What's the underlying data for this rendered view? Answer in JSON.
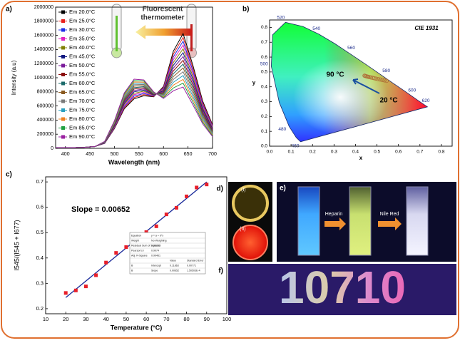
{
  "chart_data": [
    {
      "type": "line",
      "label": "a)",
      "xlabel": "Wavelength (nm)",
      "ylabel": "Intensity (a.u)",
      "annotation": [
        "Fluorescent",
        "thermometer"
      ],
      "x": [
        380,
        400,
        420,
        440,
        460,
        480,
        500,
        520,
        540,
        560,
        580,
        600,
        620,
        640,
        660,
        680,
        700
      ],
      "xlim": [
        380,
        700
      ],
      "xticks": [
        400,
        450,
        500,
        550,
        600,
        650,
        700
      ],
      "ylim": [
        0,
        2000000
      ],
      "yticks": [
        0,
        200000,
        400000,
        600000,
        800000,
        1000000,
        1200000,
        1400000,
        1600000,
        1800000,
        2000000
      ],
      "series": [
        {
          "name": "Em 20.0°C",
          "color": "#000000",
          "values": [
            10000,
            10000,
            10000,
            15000,
            25000,
            70000,
            280000,
            560000,
            700000,
            745000,
            730000,
            875000,
            1375000,
            1625000,
            1176000,
            668000,
            334000
          ]
        },
        {
          "name": "Em 25.0°C",
          "color": "#e8201c",
          "values": [
            10000,
            10000,
            10000,
            15000,
            25000,
            72000,
            288000,
            576000,
            720000,
            761000,
            735000,
            863000,
            1335000,
            1571000,
            1136000,
            645000,
            322000
          ]
        },
        {
          "name": "Em 30.0°C",
          "color": "#1c2ee8",
          "values": [
            10000,
            10000,
            10000,
            15000,
            25000,
            74000,
            296000,
            592000,
            740000,
            777000,
            740000,
            851000,
            1295000,
            1517000,
            1096000,
            622000,
            310000
          ]
        },
        {
          "name": "Em 35.0°C",
          "color": "#e020c0",
          "values": [
            10000,
            10000,
            10000,
            15000,
            25000,
            76000,
            304000,
            608000,
            760000,
            793000,
            745000,
            839000,
            1255000,
            1463000,
            1056000,
            599000,
            298000
          ]
        },
        {
          "name": "Em 40.0°C",
          "color": "#808000",
          "values": [
            10000,
            10000,
            10000,
            15000,
            25000,
            78000,
            312000,
            624000,
            780000,
            809000,
            750000,
            827000,
            1215000,
            1409000,
            1016000,
            576000,
            286000
          ]
        },
        {
          "name": "Em 45.0°C",
          "color": "#101880",
          "values": [
            10000,
            10000,
            10000,
            15000,
            25000,
            80000,
            320000,
            640000,
            800000,
            825000,
            755000,
            815000,
            1175000,
            1355000,
            976000,
            553000,
            274000
          ]
        },
        {
          "name": "Em 50.0°C",
          "color": "#7a1a9a",
          "values": [
            10000,
            10000,
            10000,
            15000,
            25000,
            82000,
            328000,
            656000,
            820000,
            841000,
            760000,
            803000,
            1135000,
            1301000,
            936000,
            530000,
            262000
          ]
        },
        {
          "name": "Em 55.0°C",
          "color": "#8a1010",
          "values": [
            10000,
            10000,
            10000,
            15000,
            25000,
            84000,
            336000,
            672000,
            840000,
            857000,
            765000,
            791000,
            1095000,
            1247000,
            896000,
            507000,
            250000
          ]
        },
        {
          "name": "Em 60.0°C",
          "color": "#1a6a6a",
          "values": [
            10000,
            10000,
            10000,
            15000,
            25000,
            86000,
            344000,
            688000,
            860000,
            873000,
            770000,
            779000,
            1055000,
            1193000,
            856000,
            484000,
            238000
          ]
        },
        {
          "name": "Em 65.0°C",
          "color": "#8a5a20",
          "values": [
            10000,
            10000,
            10000,
            15000,
            25000,
            88000,
            352000,
            704000,
            880000,
            889000,
            775000,
            767000,
            1015000,
            1139000,
            816000,
            461000,
            226000
          ]
        },
        {
          "name": "Em 70.0°C",
          "color": "#7a7a7a",
          "values": [
            10000,
            10000,
            10000,
            15000,
            25000,
            90000,
            360000,
            720000,
            900000,
            905000,
            780000,
            755000,
            975000,
            1085000,
            776000,
            438000,
            214000
          ]
        },
        {
          "name": "Em 75.0°C",
          "color": "#2aa0c0",
          "values": [
            10000,
            10000,
            10000,
            15000,
            25000,
            92000,
            368000,
            736000,
            920000,
            921000,
            785000,
            743000,
            935000,
            1031000,
            736000,
            415000,
            202000
          ]
        },
        {
          "name": "Em 80.0°C",
          "color": "#f08020",
          "values": [
            10000,
            10000,
            10000,
            15000,
            25000,
            94000,
            376000,
            752000,
            940000,
            937000,
            790000,
            731000,
            895000,
            977000,
            696000,
            392000,
            190000
          ]
        },
        {
          "name": "Em 85.0°C",
          "color": "#20a040",
          "values": [
            10000,
            10000,
            10000,
            15000,
            25000,
            96000,
            384000,
            768000,
            960000,
            953000,
            795000,
            719000,
            855000,
            923000,
            656000,
            369000,
            178000
          ]
        },
        {
          "name": "Em 90.0°C",
          "color": "#9a20a0",
          "values": [
            10000,
            10000,
            10000,
            15000,
            25000,
            98000,
            392000,
            784000,
            980000,
            969000,
            800000,
            707000,
            815000,
            869000,
            616000,
            346000,
            166000
          ]
        }
      ]
    },
    {
      "type": "cie",
      "label": "b)",
      "title": "CIE 1931",
      "xlabel": "x",
      "ylabel": "y",
      "xlim": [
        0,
        0.85
      ],
      "ylim": [
        0,
        0.85
      ],
      "xticks": [
        {
          "value": 0,
          "label": "0.0"
        },
        {
          "value": 0.1,
          "label": "0.1"
        },
        {
          "value": 0.2,
          "label": "0.2"
        },
        {
          "value": 0.3,
          "label": "0.3"
        },
        {
          "value": 0.4,
          "label": "0.4"
        },
        {
          "value": 0.5,
          "label": "0.5"
        },
        {
          "value": 0.6,
          "label": "0.6"
        },
        {
          "value": 0.7,
          "label": "0.7"
        },
        {
          "value": 0.8,
          "label": "0.8"
        }
      ],
      "yticks": [
        {
          "value": 0,
          "label": "0.0"
        },
        {
          "value": 0.1,
          "label": "0.1"
        },
        {
          "value": 0.2,
          "label": "0.2"
        },
        {
          "value": 0.3,
          "label": "0.3"
        },
        {
          "value": 0.4,
          "label": "0.4"
        },
        {
          "value": 0.5,
          "label": "0.5"
        },
        {
          "value": 0.6,
          "label": "0.6"
        },
        {
          "value": 0.7,
          "label": "0.7"
        },
        {
          "value": 0.8,
          "label": "0.8"
        }
      ],
      "locus": {
        "x": [
          0.144,
          0.124,
          0.091,
          0.045,
          0.008,
          0.014,
          0.074,
          0.155,
          0.23,
          0.302,
          0.373,
          0.444,
          0.512,
          0.575,
          0.627,
          0.691,
          0.735
        ],
        "y": [
          0.03,
          0.058,
          0.133,
          0.295,
          0.538,
          0.75,
          0.834,
          0.806,
          0.754,
          0.692,
          0.624,
          0.555,
          0.487,
          0.424,
          0.373,
          0.308,
          0.265
        ],
        "labels": [
          "460",
          null,
          "480",
          null,
          "500",
          null,
          "520",
          null,
          "540",
          null,
          "560",
          null,
          "580",
          null,
          "600",
          "620",
          null
        ]
      },
      "x": [
        0.545,
        0.535,
        0.525,
        0.515,
        0.505,
        0.495,
        0.487,
        0.479,
        0.472,
        0.466,
        0.46,
        0.455,
        0.45,
        0.446,
        0.442
      ],
      "values": [
        0.44,
        0.443,
        0.446,
        0.449,
        0.452,
        0.455,
        0.458,
        0.461,
        0.463,
        0.465,
        0.467,
        0.469,
        0.471,
        0.473,
        0.475
      ],
      "color": "#b07038",
      "annotations": [
        "90 °C",
        "20 °C"
      ]
    },
    {
      "type": "scatter",
      "label": "c)",
      "xlabel": "Temperature (°C)",
      "ylabel": "I545/(I545 + I677)",
      "annotation": "Slope = 0.00652",
      "x": [
        20,
        25,
        30,
        35,
        40,
        45,
        50,
        55,
        60,
        65,
        70,
        75,
        80,
        85,
        90
      ],
      "values": [
        0.262,
        0.272,
        0.288,
        0.332,
        0.382,
        0.42,
        0.443,
        0.46,
        0.502,
        0.525,
        0.572,
        0.598,
        0.643,
        0.678,
        0.69
      ],
      "color": "#e8202a",
      "fit": {
        "x": [
          20,
          90
        ],
        "values": [
          0.244,
          0.7
        ],
        "color": "#1a2a9a"
      },
      "xlim": [
        10,
        100
      ],
      "xticks": [
        10,
        20,
        30,
        40,
        50,
        60,
        70,
        80,
        90,
        100
      ],
      "ylim": [
        0.18,
        0.72
      ],
      "yticks": [
        0.2,
        0.3,
        0.4,
        0.5,
        0.6,
        0.7
      ],
      "inset_table": {
        "rows": [
          [
            "Equation",
            "y = a + b*x"
          ],
          [
            "Weight",
            "No Weighting"
          ],
          [
            "Residual Sum of Squares",
            "0.00153"
          ],
          [
            "Pearson's r",
            "0.9974"
          ],
          [
            "Adj. R-Square",
            "0.99461"
          ],
          [
            "Value",
            "Standard Error"
          ],
          [
            "B",
            "Intercept",
            "0.11863",
            "0.00771"
          ],
          [
            "B",
            "Slope",
            "0.00652",
            "1.50503E-4"
          ]
        ]
      }
    }
  ],
  "photos": {
    "d": {
      "label": "d)",
      "items": [
        "(I)",
        "(II)"
      ]
    },
    "e": {
      "label": "e)",
      "steps": [
        "Heparin",
        "Nile Red"
      ]
    },
    "f": {
      "label": "f)",
      "text": "10710"
    }
  }
}
